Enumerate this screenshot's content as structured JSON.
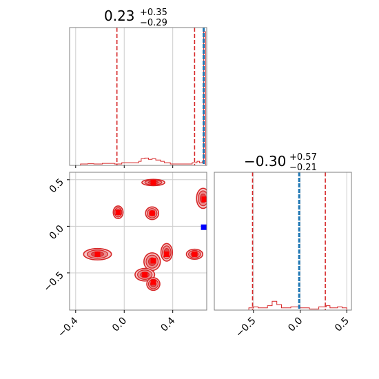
{
  "colors": {
    "posterior": "#d62728",
    "truth": "#1f77b4",
    "marker": "#ff0000",
    "blue_marker": "#0000ff",
    "grid": "#cccccc",
    "axes": "#7f7f7f",
    "contour_fill_light": "#f5c6c6",
    "contour_fill_mid": "#eb8c8d",
    "contour_fill_dark": "#de4a4b"
  },
  "chart_data": [
    {
      "panel": "marginal-param-1",
      "type": "histogram",
      "title": "0.23",
      "title_upper": "+0.35",
      "title_lower": "−0.29",
      "xlim": [
        -0.45,
        0.68
      ],
      "quantiles": [
        -0.06,
        0.58
      ],
      "truth": 0.655,
      "grid": true,
      "hist_x": [
        -0.38,
        -0.36,
        -0.3,
        -0.25,
        -0.18,
        -0.08,
        -0.02,
        0.12,
        0.14,
        0.17,
        0.2,
        0.23,
        0.26,
        0.3,
        0.33,
        0.38,
        0.5,
        0.56,
        0.6,
        0.62,
        0.645,
        0.655,
        0.67
      ],
      "hist_h": [
        0,
        0.01,
        0.012,
        0.01,
        0.015,
        0.01,
        0.02,
        0.03,
        0.05,
        0.055,
        0.045,
        0.05,
        0.04,
        0.03,
        0.02,
        0.01,
        0.01,
        0.02,
        0.03,
        0.02,
        0.03,
        1.0,
        0
      ]
    },
    {
      "panel": "marginal-param-2",
      "type": "histogram",
      "title": "−0.30",
      "title_upper": "+0.57",
      "title_lower": "−0.21",
      "xlim": [
        -0.92,
        0.55
      ],
      "quantiles": [
        -0.51,
        0.27
      ],
      "truth": -0.01,
      "xticks": [
        "−0.5",
        "0.0",
        "0.5"
      ],
      "xtick_values": [
        -0.5,
        0.0,
        0.5
      ],
      "grid": true,
      "hist_x": [
        -0.62,
        -0.55,
        -0.5,
        -0.45,
        -0.35,
        -0.3,
        -0.25,
        -0.2,
        -0.1,
        0.0,
        0.1,
        0.2,
        0.28,
        0.32,
        0.4,
        0.45,
        0.5
      ],
      "hist_h": [
        0.0,
        0.02,
        0.03,
        0.02,
        0.04,
        0.08,
        0.05,
        0.02,
        0.03,
        0.02,
        0.01,
        0.03,
        0.04,
        0.02,
        0.03,
        0.02,
        0.0
      ]
    },
    {
      "panel": "joint-param-1-param-2",
      "type": "scatter",
      "xlim": [
        -0.45,
        0.68
      ],
      "ylim": [
        -0.9,
        0.58
      ],
      "xticks": [
        "−0.4",
        "0.0",
        "0.4"
      ],
      "xtick_values": [
        -0.4,
        0.0,
        0.4
      ],
      "yticks": [
        "−0.5",
        "0.0",
        "0.5"
      ],
      "ytick_values": [
        -0.5,
        0.0,
        0.5
      ],
      "grid": true,
      "clusters": [
        {
          "x": -0.22,
          "y": -0.3,
          "sx": 0.085,
          "sy": 0.045
        },
        {
          "x": -0.05,
          "y": 0.15,
          "sx": 0.03,
          "sy": 0.05
        },
        {
          "x": 0.23,
          "y": 0.14,
          "sx": 0.04,
          "sy": 0.05
        },
        {
          "x": 0.24,
          "y": 0.47,
          "sx": 0.07,
          "sy": 0.025
        },
        {
          "x": 0.65,
          "y": 0.3,
          "sx": 0.04,
          "sy": 0.08
        },
        {
          "x": 0.58,
          "y": -0.3,
          "sx": 0.05,
          "sy": 0.04
        },
        {
          "x": 0.35,
          "y": -0.28,
          "sx": 0.035,
          "sy": 0.07
        },
        {
          "x": 0.23,
          "y": -0.38,
          "sx": 0.05,
          "sy": 0.07
        },
        {
          "x": 0.17,
          "y": -0.52,
          "sx": 0.06,
          "sy": 0.05
        },
        {
          "x": 0.24,
          "y": -0.62,
          "sx": 0.04,
          "sy": 0.05
        }
      ],
      "red_markers": [
        {
          "x": -0.22,
          "y": -0.3
        },
        {
          "x": -0.05,
          "y": 0.15
        },
        {
          "x": 0.23,
          "y": 0.14
        },
        {
          "x": 0.24,
          "y": 0.47
        },
        {
          "x": 0.66,
          "y": 0.29
        },
        {
          "x": 0.58,
          "y": -0.3
        },
        {
          "x": 0.35,
          "y": -0.3
        },
        {
          "x": 0.24,
          "y": -0.37
        },
        {
          "x": 0.17,
          "y": -0.52
        },
        {
          "x": 0.24,
          "y": -0.6
        }
      ],
      "blue_marker": {
        "x": 0.655,
        "y": -0.01
      }
    }
  ]
}
